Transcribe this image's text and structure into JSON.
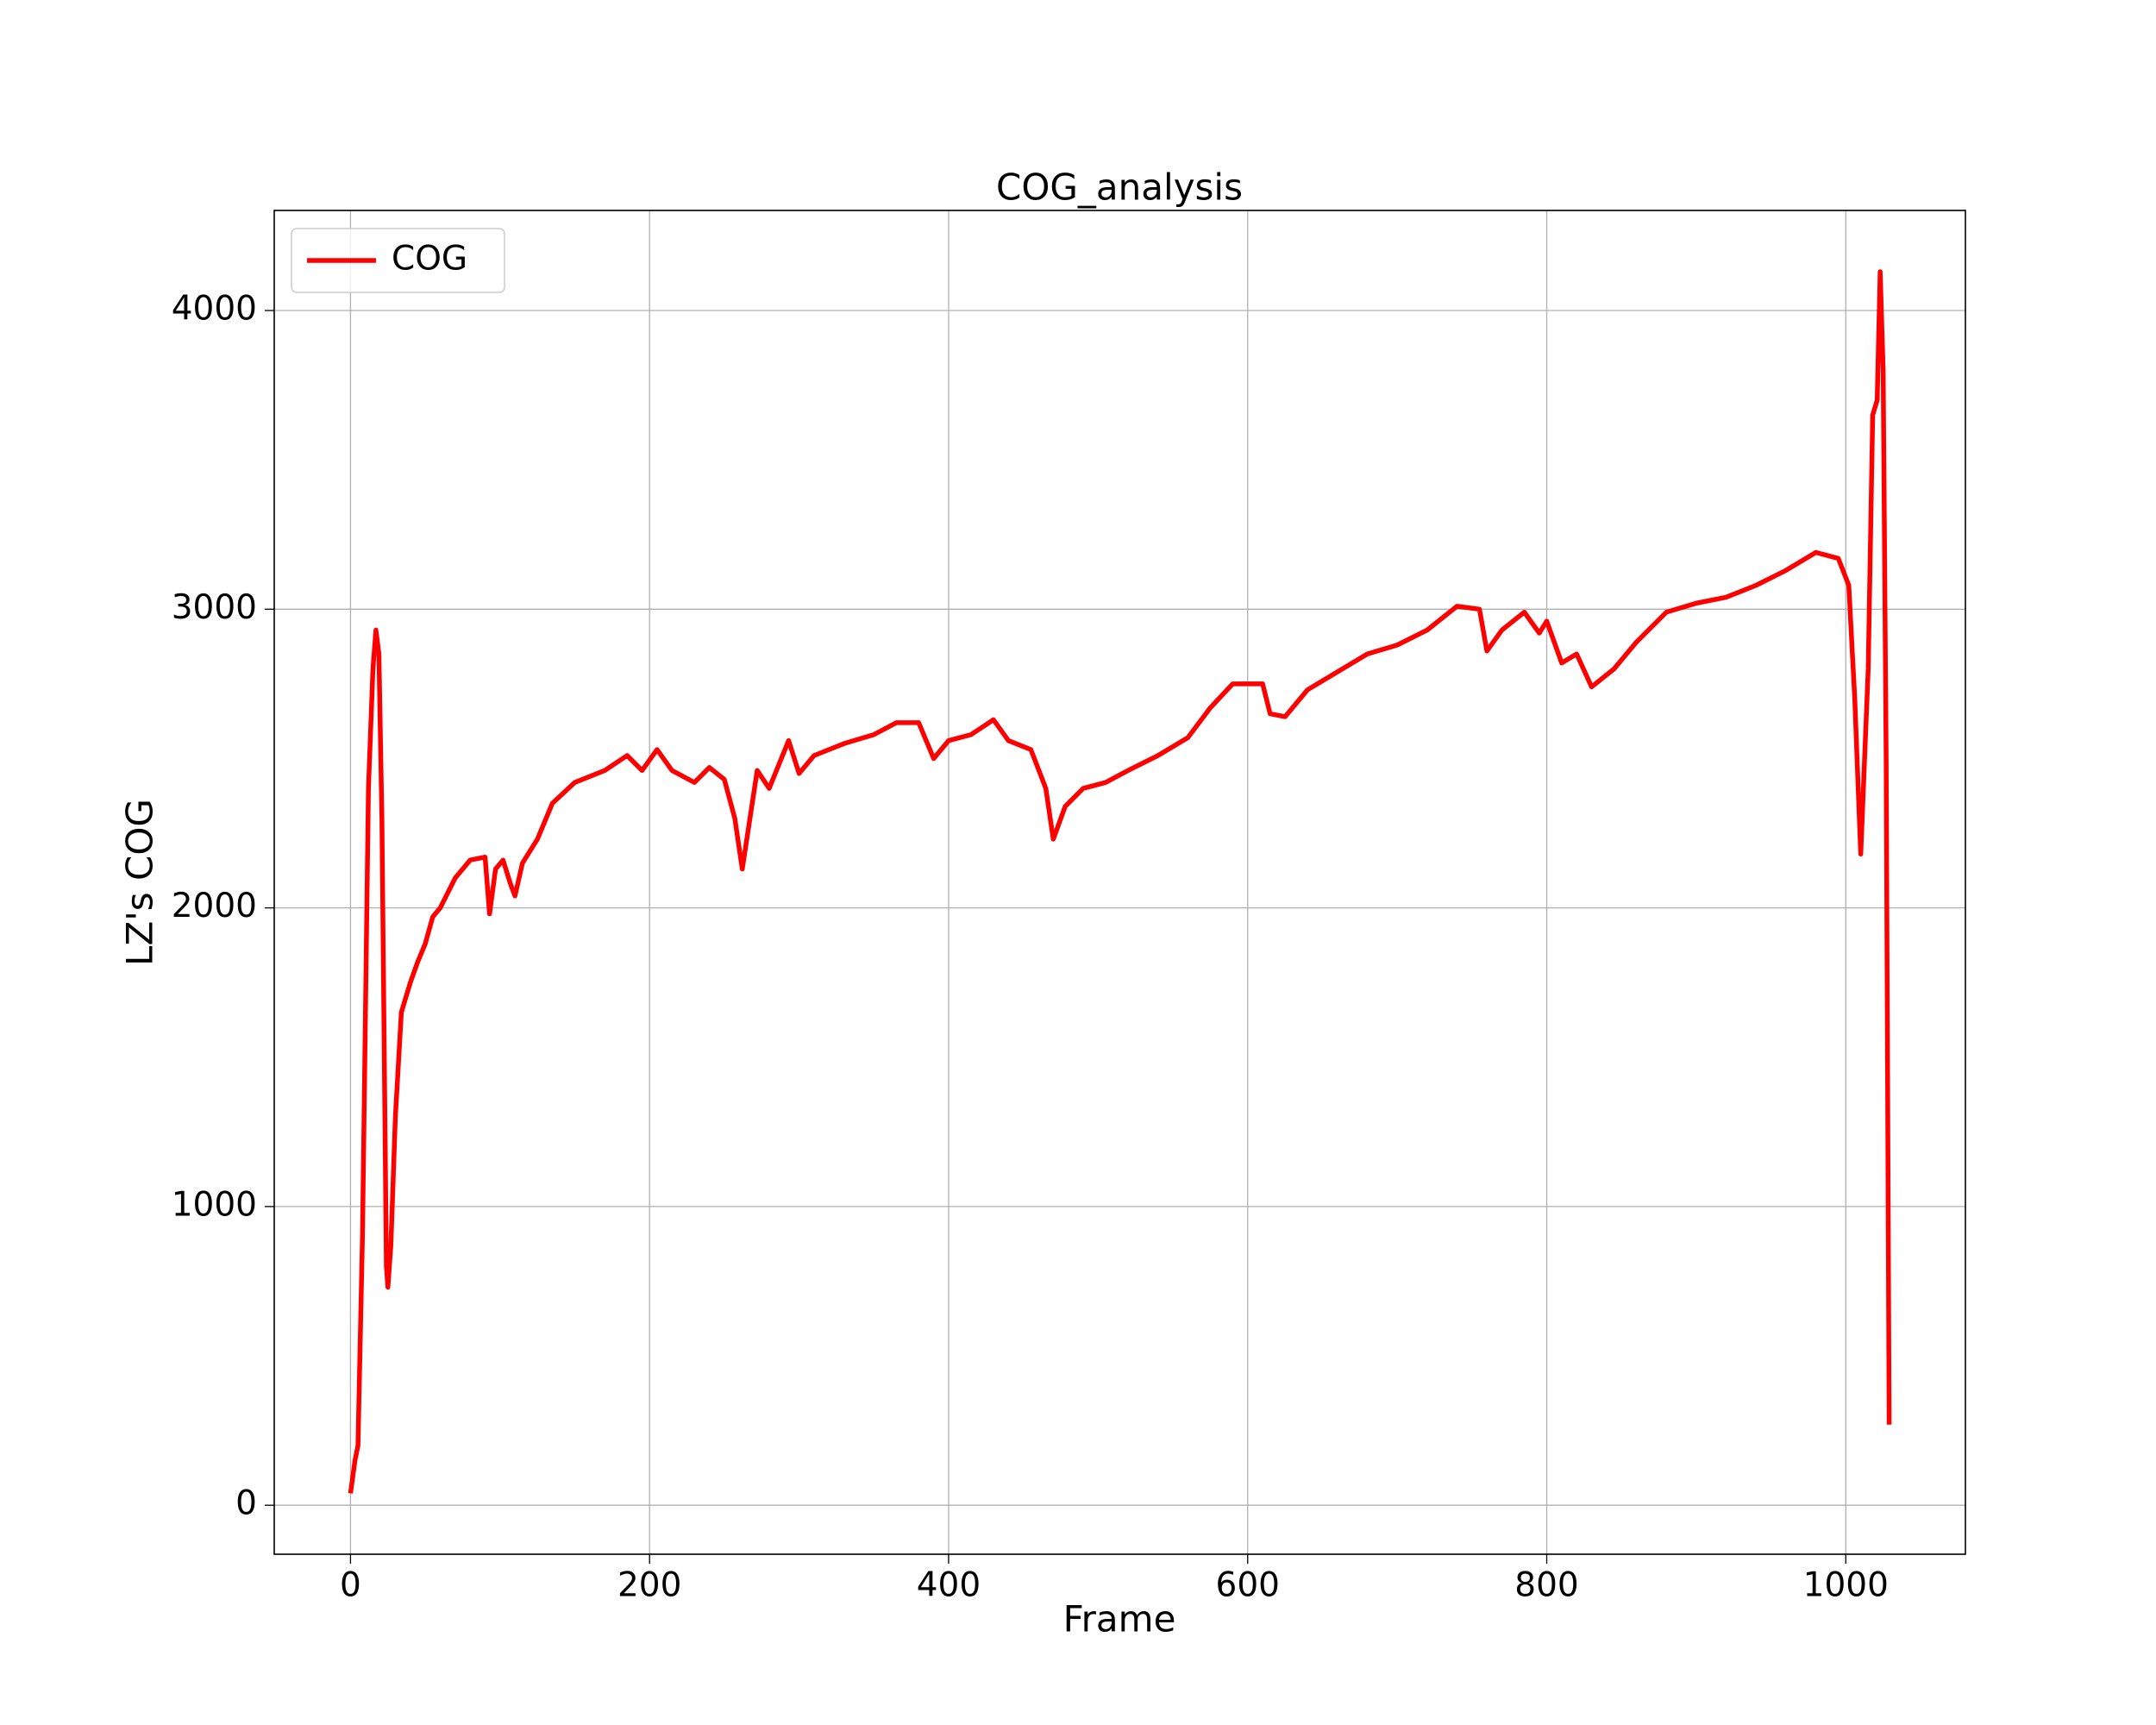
{
  "chart_data": {
    "type": "line",
    "title": "COG_analysis",
    "xlabel": "Frame",
    "ylabel": "LZ's COG",
    "x": [
      0,
      3,
      5,
      8,
      12,
      15,
      17,
      19,
      21,
      24,
      25,
      27,
      30,
      34,
      40,
      45,
      50,
      55,
      60,
      70,
      80,
      90,
      93,
      97,
      102,
      107,
      110,
      115,
      125,
      135,
      150,
      170,
      185,
      195,
      205,
      215,
      230,
      240,
      250,
      257,
      262,
      272,
      280,
      293,
      300,
      310,
      330,
      350,
      365,
      380,
      390,
      400,
      415,
      430,
      440,
      455,
      465,
      470,
      478,
      490,
      505,
      520,
      540,
      560,
      575,
      590,
      610,
      615,
      625,
      640,
      660,
      680,
      700,
      720,
      740,
      755,
      760,
      770,
      785,
      795,
      800,
      810,
      820,
      830,
      845,
      860,
      880,
      900,
      920,
      940,
      960,
      980,
      995,
      1002,
      1006,
      1010,
      1015,
      1018,
      1021,
      1023,
      1025,
      1027,
      1029
    ],
    "series": [
      {
        "name": "COG",
        "color": "#ff0000",
        "values": [
          40,
          150,
          200,
          900,
          2400,
          2800,
          2930,
          2850,
          2300,
          800,
          730,
          870,
          1300,
          1650,
          1750,
          1820,
          1880,
          1970,
          2000,
          2100,
          2160,
          2170,
          1980,
          2130,
          2160,
          2080,
          2040,
          2150,
          2230,
          2350,
          2420,
          2460,
          2510,
          2460,
          2530,
          2460,
          2420,
          2470,
          2430,
          2300,
          2130,
          2460,
          2400,
          2560,
          2450,
          2510,
          2550,
          2580,
          2620,
          2620,
          2500,
          2560,
          2580,
          2630,
          2560,
          2530,
          2400,
          2230,
          2340,
          2400,
          2420,
          2460,
          2510,
          2570,
          2670,
          2750,
          2750,
          2650,
          2640,
          2730,
          2790,
          2850,
          2880,
          2930,
          3010,
          3000,
          2860,
          2930,
          2990,
          2920,
          2960,
          2820,
          2850,
          2740,
          2800,
          2890,
          2990,
          3020,
          3040,
          3080,
          3130,
          3190,
          3170,
          3080,
          2700,
          2180,
          2800,
          3650,
          3700,
          4130,
          3800,
          2500,
          270
        ]
      }
    ],
    "xlim": [
      -51,
      1080
    ],
    "ylim": [
      -164,
      4335
    ],
    "xticks": [
      0,
      200,
      400,
      600,
      800,
      1000
    ],
    "yticks": [
      0,
      1000,
      2000,
      3000,
      4000
    ],
    "grid": true,
    "legend": "upper left"
  }
}
